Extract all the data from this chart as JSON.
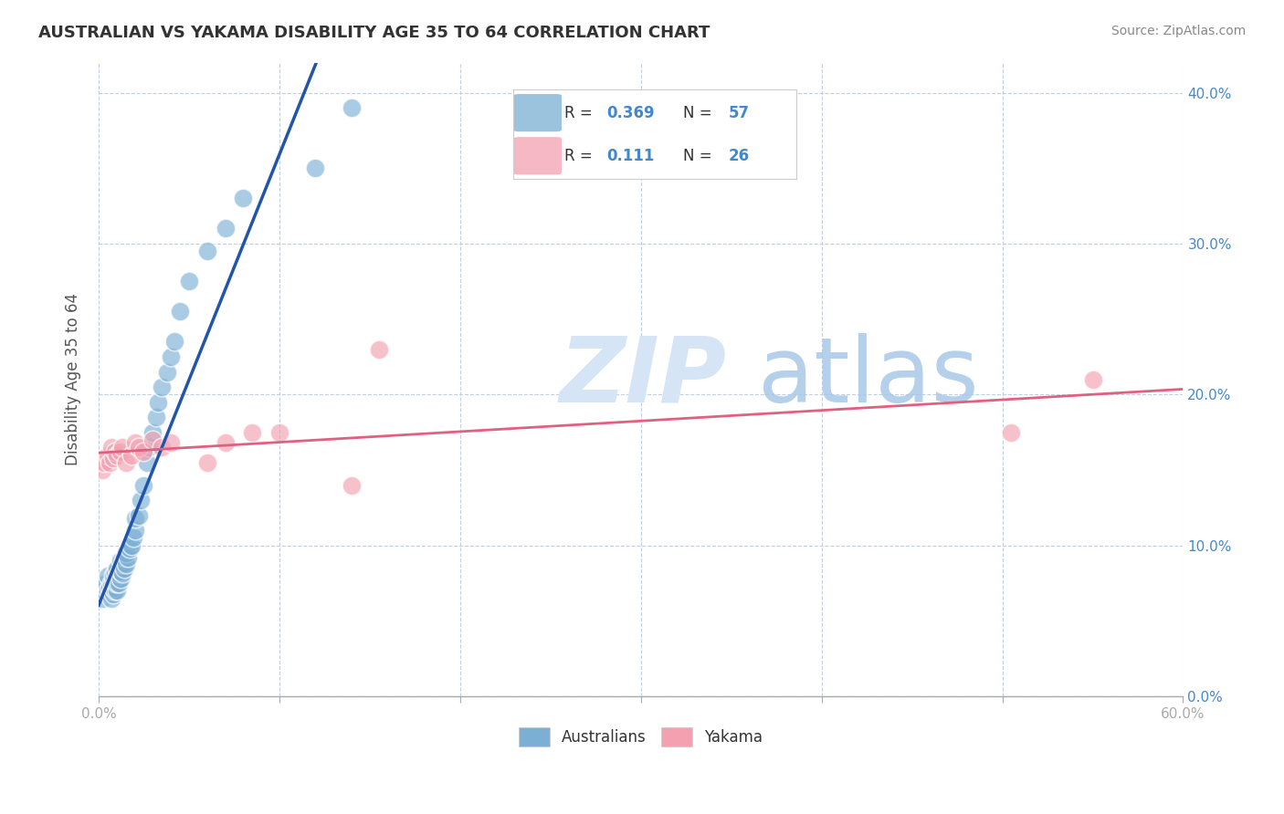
{
  "title": "AUSTRALIAN VS YAKAMA DISABILITY AGE 35 TO 64 CORRELATION CHART",
  "source": "Source: ZipAtlas.com",
  "ylabel": "Disability Age 35 to 64",
  "xlim": [
    0.0,
    0.6
  ],
  "ylim": [
    0.0,
    0.42
  ],
  "xticks": [
    0.0,
    0.1,
    0.2,
    0.3,
    0.4,
    0.5,
    0.6
  ],
  "yticks": [
    0.0,
    0.1,
    0.2,
    0.3,
    0.4
  ],
  "ytick_labels": [
    "0.0%",
    "10.0%",
    "20.0%",
    "30.0%",
    "40.0%"
  ],
  "aus_R": 0.369,
  "aus_N": 57,
  "yak_R": 0.111,
  "yak_N": 26,
  "aus_color": "#7bafd4",
  "yak_color": "#f4a0b0",
  "aus_line_color": "#2255aa",
  "yak_line_color": "#e06080",
  "watermark_zip_color": "#d5e5f5",
  "watermark_atlas_color": "#a8c8e8",
  "legend_text_color": "#4488cc",
  "aus_scatter_x": [
    0.002,
    0.003,
    0.004,
    0.005,
    0.005,
    0.006,
    0.006,
    0.007,
    0.007,
    0.007,
    0.008,
    0.008,
    0.008,
    0.008,
    0.009,
    0.009,
    0.009,
    0.01,
    0.01,
    0.01,
    0.01,
    0.011,
    0.011,
    0.012,
    0.012,
    0.012,
    0.013,
    0.013,
    0.014,
    0.014,
    0.015,
    0.015,
    0.016,
    0.017,
    0.018,
    0.019,
    0.02,
    0.02,
    0.022,
    0.023,
    0.025,
    0.027,
    0.028,
    0.03,
    0.032,
    0.033,
    0.035,
    0.038,
    0.04,
    0.042,
    0.045,
    0.05,
    0.06,
    0.07,
    0.08,
    0.12,
    0.14
  ],
  "aus_scatter_y": [
    0.065,
    0.07,
    0.075,
    0.07,
    0.08,
    0.068,
    0.072,
    0.065,
    0.07,
    0.075,
    0.068,
    0.072,
    0.076,
    0.08,
    0.07,
    0.075,
    0.082,
    0.07,
    0.075,
    0.08,
    0.085,
    0.075,
    0.082,
    0.078,
    0.083,
    0.09,
    0.082,
    0.088,
    0.085,
    0.092,
    0.088,
    0.095,
    0.092,
    0.098,
    0.1,
    0.105,
    0.11,
    0.118,
    0.12,
    0.13,
    0.14,
    0.155,
    0.165,
    0.175,
    0.185,
    0.195,
    0.205,
    0.215,
    0.225,
    0.235,
    0.255,
    0.275,
    0.295,
    0.31,
    0.33,
    0.35,
    0.39
  ],
  "yak_scatter_x": [
    0.002,
    0.003,
    0.005,
    0.006,
    0.007,
    0.008,
    0.009,
    0.01,
    0.012,
    0.013,
    0.015,
    0.018,
    0.02,
    0.022,
    0.025,
    0.03,
    0.035,
    0.04,
    0.06,
    0.07,
    0.085,
    0.1,
    0.14,
    0.155,
    0.505,
    0.55
  ],
  "yak_scatter_y": [
    0.15,
    0.155,
    0.16,
    0.155,
    0.165,
    0.158,
    0.162,
    0.16,
    0.162,
    0.165,
    0.155,
    0.16,
    0.168,
    0.165,
    0.162,
    0.17,
    0.165,
    0.168,
    0.155,
    0.168,
    0.175,
    0.175,
    0.14,
    0.23,
    0.175,
    0.21
  ]
}
